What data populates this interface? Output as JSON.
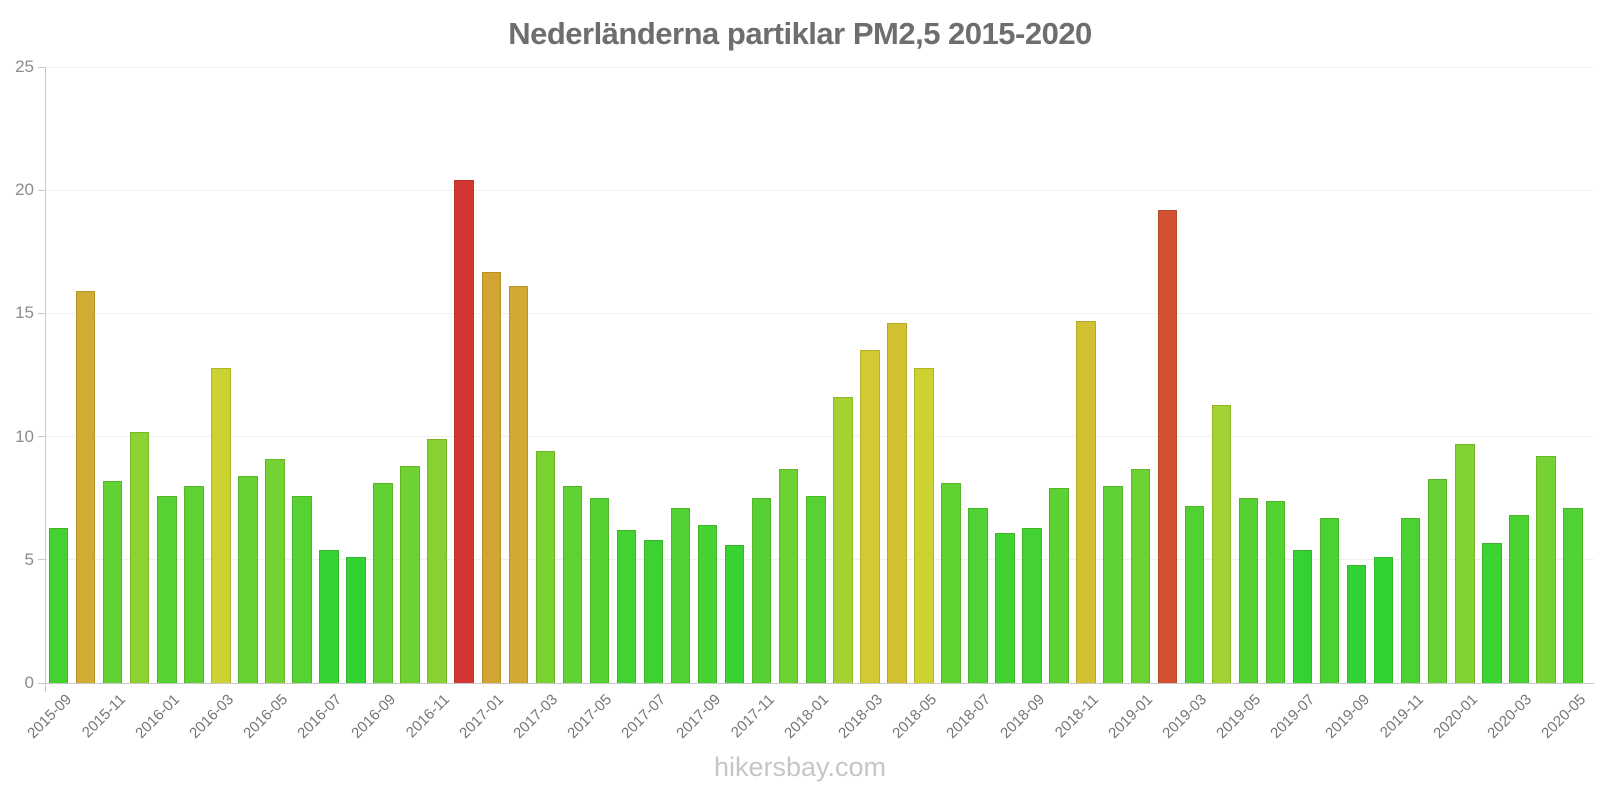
{
  "header": {
    "title": "Nederländerna partiklar PM2,5 2015-2020"
  },
  "footer": {
    "watermark": "hikersbay.com"
  },
  "colors": {
    "grid": "#f0f0f0",
    "axis": "#c9c9c9",
    "title_text": "#6e6e6e",
    "tick_text": "#8c8c8c",
    "x_tick_text": "#757575",
    "watermark_text": "#c6c6c6"
  },
  "chart_data": {
    "type": "bar",
    "title": "Nederländerna partiklar PM2,5 2015-2020",
    "xlabel": "",
    "ylabel": "",
    "grid": true,
    "legend_position": "none",
    "ylim": [
      0,
      25
    ],
    "y_ticks": [
      0,
      5,
      10,
      15,
      20,
      25
    ],
    "categories": [
      "2015-09",
      "2015-10",
      "2015-11",
      "2015-12",
      "2016-01",
      "2016-02",
      "2016-03",
      "2016-04",
      "2016-05",
      "2016-06",
      "2016-07",
      "2016-08",
      "2016-09",
      "2016-10",
      "2016-11",
      "2016-12",
      "2017-01",
      "2017-02",
      "2017-03",
      "2017-04",
      "2017-05",
      "2017-06",
      "2017-07",
      "2017-08",
      "2017-09",
      "2017-10",
      "2017-11",
      "2017-12",
      "2018-01",
      "2018-02",
      "2018-03",
      "2018-04",
      "2018-05",
      "2018-06",
      "2018-07",
      "2018-08",
      "2018-09",
      "2018-10",
      "2018-11",
      "2018-12",
      "2019-01",
      "2019-02",
      "2019-03",
      "2019-04",
      "2019-05",
      "2019-06",
      "2019-07",
      "2019-08",
      "2019-09",
      "2019-10",
      "2019-11",
      "2019-12",
      "2020-01",
      "2020-02",
      "2020-03",
      "2020-04",
      "2020-05"
    ],
    "values": [
      6.3,
      15.9,
      8.2,
      10.2,
      7.6,
      8.0,
      12.8,
      8.4,
      9.1,
      7.6,
      5.4,
      5.1,
      8.1,
      8.8,
      9.9,
      20.4,
      16.7,
      16.1,
      9.4,
      8.0,
      7.5,
      6.2,
      5.8,
      7.1,
      6.4,
      5.6,
      7.5,
      8.7,
      7.6,
      11.6,
      13.5,
      14.6,
      12.8,
      8.1,
      7.1,
      6.1,
      6.3,
      7.9,
      14.7,
      8.0,
      8.7,
      19.2,
      7.2,
      11.3,
      7.5,
      7.4,
      5.4,
      6.7,
      4.8,
      5.1,
      6.7,
      8.3,
      9.7,
      5.7,
      6.8,
      9.2,
      7.1
    ],
    "bar_colors": [
      "#43d232",
      "#d2ac32",
      "#61d232",
      "#8bd232",
      "#56d232",
      "#5dd232",
      "#cbd232",
      "#65d232",
      "#74d232",
      "#56d232",
      "#36d232",
      "#32d233",
      "#5fd232",
      "#6ed232",
      "#85d232",
      "#d23732",
      "#d2a532",
      "#d2a932",
      "#7ad232",
      "#5dd232",
      "#55d232",
      "#42d232",
      "#3cd232",
      "#4fd232",
      "#45d232",
      "#39d232",
      "#55d232",
      "#6cd232",
      "#56d232",
      "#a5d232",
      "#d2ca32",
      "#d2c232",
      "#cbd232",
      "#5fd232",
      "#4fd232",
      "#41d232",
      "#43d232",
      "#5bd232",
      "#d2c132",
      "#5dd232",
      "#6cd232",
      "#d25232",
      "#51d232",
      "#a3d232",
      "#55d232",
      "#54d232",
      "#36d232",
      "#49d232",
      "#32d237",
      "#32d233",
      "#49d232",
      "#63d232",
      "#81d232",
      "#3bd232",
      "#4ad232",
      "#76d232",
      "#4fd232"
    ],
    "x_tick_labels": [
      "2015-09",
      "2015-11",
      "2016-01",
      "2016-03",
      "2016-05",
      "2016-07",
      "2016-09",
      "2016-11",
      "2017-01",
      "2017-03",
      "2017-05",
      "2017-07",
      "2017-09",
      "2017-11",
      "2018-01",
      "2018-03",
      "2018-05",
      "2018-07",
      "2018-09",
      "2018-11",
      "2019-01",
      "2019-03",
      "2019-05",
      "2019-07",
      "2019-09",
      "2019-11",
      "2020-01",
      "2020-03",
      "2020-05"
    ]
  }
}
